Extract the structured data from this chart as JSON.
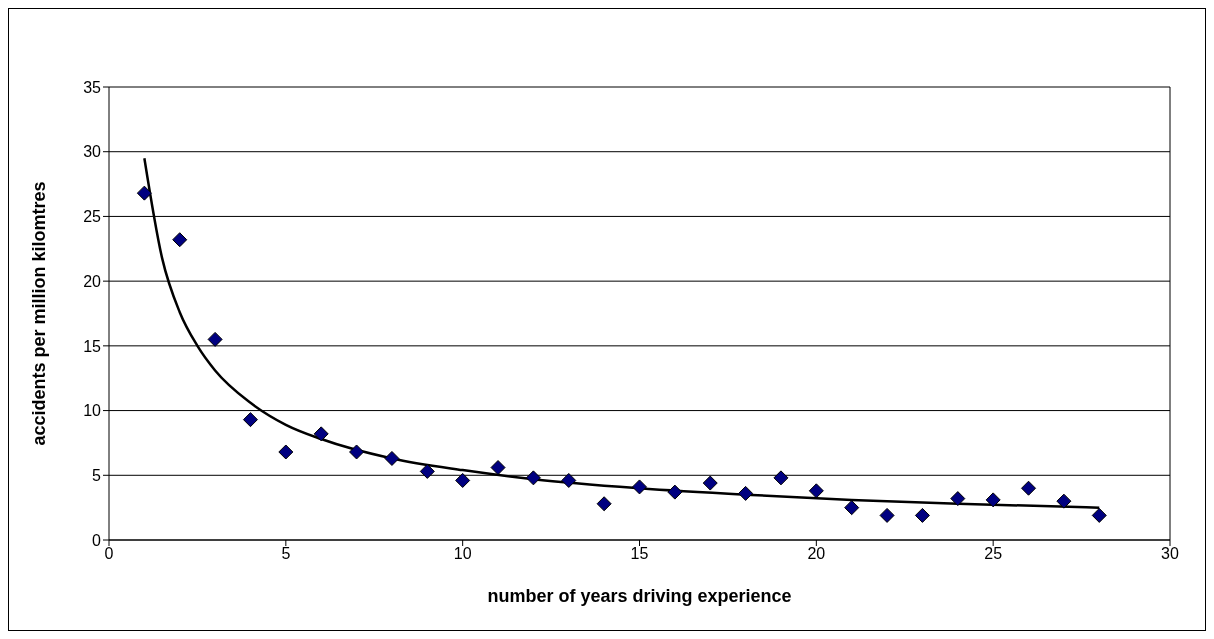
{
  "chart_data": {
    "type": "scatter",
    "xlabel": "number of years driving experience",
    "ylabel": "accidents per million kilomtres",
    "xlim": [
      0,
      30
    ],
    "xticks": [
      0,
      5,
      10,
      15,
      20,
      25,
      30
    ],
    "ylim": [
      0,
      35
    ],
    "yticks": [
      0,
      5,
      10,
      15,
      20,
      25,
      30,
      35
    ],
    "grid": "y",
    "series": [
      {
        "marker": "diamond",
        "color": "#000080",
        "x": [
          1,
          2,
          3,
          4,
          5,
          6,
          7,
          8,
          9,
          10,
          11,
          12,
          13,
          14,
          15,
          16,
          17,
          18,
          19,
          20,
          21,
          22,
          23,
          24,
          25,
          26,
          27,
          28
        ],
        "values": [
          26.8,
          23.2,
          15.5,
          9.3,
          6.8,
          8.2,
          6.8,
          6.3,
          5.3,
          4.6,
          5.6,
          4.8,
          4.6,
          2.8,
          4.1,
          3.7,
          4.4,
          3.6,
          4.8,
          3.8,
          2.5,
          1.9,
          1.9,
          3.2,
          3.1,
          4.0,
          3.0,
          1.9
        ]
      },
      {
        "type": "line",
        "marker": "none",
        "color": "#000000",
        "x": [
          1,
          1.5,
          2,
          2.5,
          3,
          4,
          5,
          6,
          8,
          10,
          12,
          15,
          18,
          21,
          24,
          28
        ],
        "values": [
          29.5,
          21.8,
          17.6,
          15.0,
          13.1,
          10.6,
          8.9,
          7.8,
          6.3,
          5.4,
          4.7,
          4.0,
          3.5,
          3.1,
          2.8,
          2.5
        ]
      }
    ]
  }
}
